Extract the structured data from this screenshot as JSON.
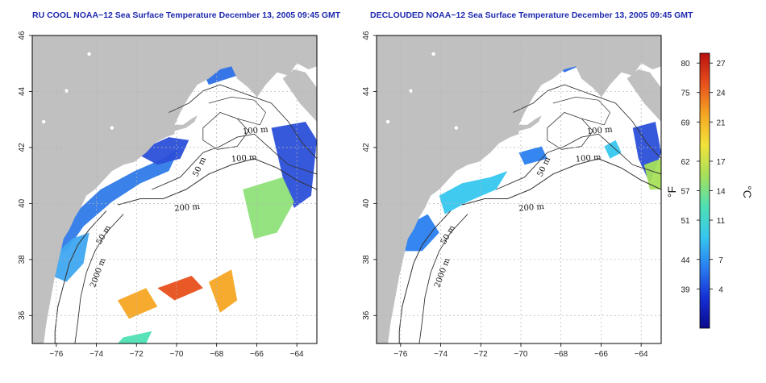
{
  "maps": [
    {
      "title": "RU COOL NOAA−12 Sea Surface Temperature December 13, 2005 09:45 GMT",
      "variant": "raw",
      "isobaths": [
        "100 m",
        "100 m",
        "50 m",
        "200 m",
        "50 m",
        "2000 m"
      ]
    },
    {
      "title": "DECLOUDED NOAA−12 Sea Surface Temperature December 13, 2005 09:45 GMT",
      "variant": "declouded",
      "isobaths": [
        "100 m",
        "100 m",
        "50 m",
        "200 m",
        "50 m",
        "2000 m"
      ]
    }
  ],
  "axes": {
    "lon_ticks": [
      "−76",
      "−74",
      "−72",
      "−70",
      "−68",
      "−66",
      "−64"
    ],
    "lon_values": [
      -76,
      -74,
      -72,
      -70,
      -68,
      -66,
      -64
    ],
    "lat_ticks": [
      "36",
      "38",
      "40",
      "42",
      "44",
      "46"
    ],
    "lat_values": [
      36,
      38,
      40,
      42,
      44,
      46
    ],
    "lon_range": [
      -77.2,
      -63.0
    ],
    "lat_range": [
      35.0,
      46.0
    ]
  },
  "colorbar": {
    "fahrenheit_ticks": [
      "80",
      "75",
      "69",
      "62",
      "57",
      "51",
      "44",
      "39"
    ],
    "celsius_ticks": [
      "27",
      "24",
      "21",
      "17",
      "14",
      "11",
      "7",
      "4"
    ],
    "celsius_values": [
      27,
      24,
      21,
      17,
      14,
      11,
      7,
      4
    ],
    "celsius_range": [
      0,
      28
    ],
    "unit_f": "°F",
    "unit_c": "°C",
    "colors": [
      "#0a0a8c",
      "#1530d6",
      "#2a7ff0",
      "#36c7ef",
      "#4fe0b3",
      "#a7e05a",
      "#f2e23a",
      "#f5a623",
      "#e8501c",
      "#b81010"
    ]
  },
  "colors": {
    "land": "#c0c0c0",
    "ocean": "#ffffff",
    "grid": "#b4b4b4",
    "contour": "#333333",
    "title": "#1e2ab0"
  }
}
